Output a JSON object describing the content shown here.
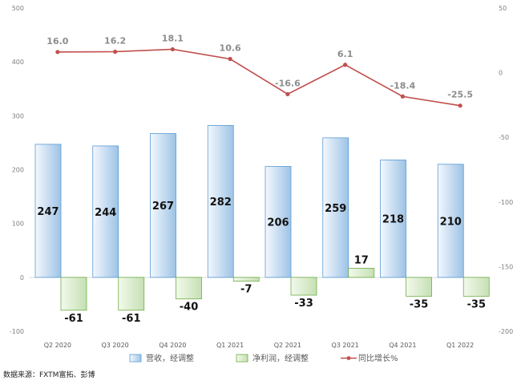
{
  "chart_data": {
    "type": "bar",
    "categories": [
      "Q2 2020",
      "Q3 2020",
      "Q4 2020",
      "Q1 2021",
      "Q2 2021",
      "Q3 2021",
      "Q4 2021",
      "Q1 2022"
    ],
    "series": [
      {
        "name": "营收，经调整",
        "kind": "bar",
        "axis": "left",
        "color": "#9dc3e6",
        "values": [
          247,
          244,
          267,
          282,
          206,
          259,
          218,
          210
        ]
      },
      {
        "name": "净利润，经调整",
        "kind": "bar",
        "axis": "left",
        "color": "#c5e0b4",
        "values": [
          -61,
          -61,
          -40,
          -7,
          -33,
          17,
          -35,
          -35
        ]
      },
      {
        "name": "同比增长%",
        "kind": "line",
        "axis": "right",
        "color": "#c0504d",
        "values": [
          16.0,
          16.2,
          18.1,
          10.6,
          -16.6,
          6.1,
          -18.4,
          -25.5
        ]
      }
    ],
    "left_axis": {
      "ylim": [
        -100,
        500
      ],
      "ticks": [
        -100,
        0,
        100,
        200,
        300,
        400,
        500
      ]
    },
    "right_axis": {
      "ylim": [
        -200,
        50
      ],
      "ticks": [
        -200,
        -150,
        -100,
        -50,
        0,
        50
      ]
    },
    "legend": "bottom",
    "grid": false
  },
  "source": "数据来源：FXTM富拓、彭博"
}
